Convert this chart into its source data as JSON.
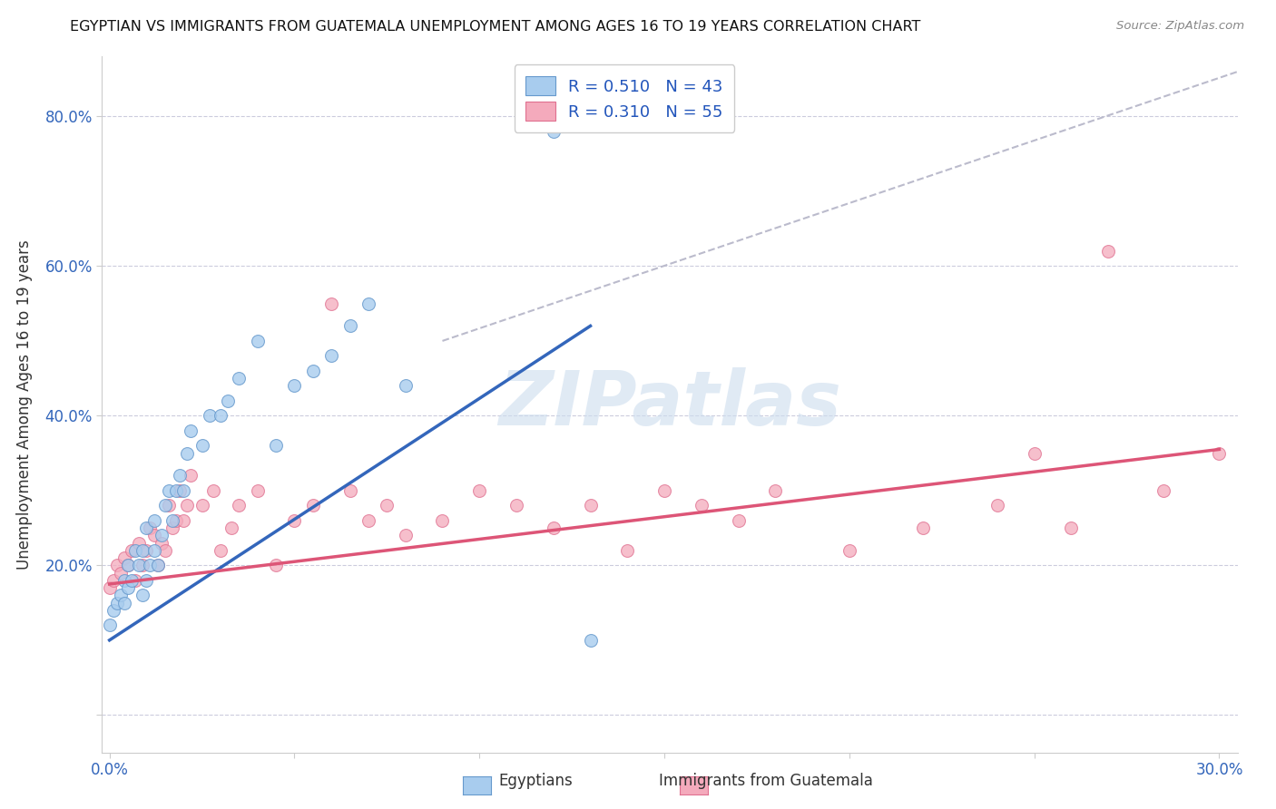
{
  "title": "EGYPTIAN VS IMMIGRANTS FROM GUATEMALA UNEMPLOYMENT AMONG AGES 16 TO 19 YEARS CORRELATION CHART",
  "source": "Source: ZipAtlas.com",
  "ylabel": "Unemployment Among Ages 16 to 19 years",
  "xlim": [
    -0.002,
    0.305
  ],
  "ylim": [
    -0.05,
    0.88
  ],
  "xticks": [
    0.0,
    0.05,
    0.1,
    0.15,
    0.2,
    0.25,
    0.3
  ],
  "xticklabels": [
    "0.0%",
    "",
    "",
    "",
    "",
    "",
    "30.0%"
  ],
  "yticks": [
    0.0,
    0.2,
    0.4,
    0.6,
    0.8
  ],
  "yticklabels": [
    "",
    "20.0%",
    "40.0%",
    "60.0%",
    "80.0%"
  ],
  "color_egyptian": "#A8CCEE",
  "color_guatemala": "#F4AABC",
  "color_edge_egyptian": "#6699CC",
  "color_edge_guatemala": "#E07090",
  "color_line_egyptian": "#3366BB",
  "color_line_guatemala": "#DD5577",
  "color_ref_line": "#BBBBCC",
  "background_color": "#FFFFFF",
  "grid_color": "#CCCCDD",
  "title_color": "#111111",
  "axis_label_color": "#333333",
  "tick_color": "#3366BB",
  "watermark_color": "#CCDDEE",
  "egyptian_x": [
    0.0,
    0.001,
    0.002,
    0.003,
    0.004,
    0.004,
    0.005,
    0.005,
    0.006,
    0.007,
    0.008,
    0.009,
    0.009,
    0.01,
    0.01,
    0.011,
    0.012,
    0.012,
    0.013,
    0.014,
    0.015,
    0.016,
    0.017,
    0.018,
    0.019,
    0.02,
    0.021,
    0.022,
    0.025,
    0.027,
    0.03,
    0.032,
    0.035,
    0.04,
    0.045,
    0.05,
    0.055,
    0.06,
    0.065,
    0.07,
    0.08,
    0.12,
    0.13
  ],
  "egyptian_y": [
    0.12,
    0.14,
    0.15,
    0.16,
    0.15,
    0.18,
    0.17,
    0.2,
    0.18,
    0.22,
    0.2,
    0.16,
    0.22,
    0.18,
    0.25,
    0.2,
    0.22,
    0.26,
    0.2,
    0.24,
    0.28,
    0.3,
    0.26,
    0.3,
    0.32,
    0.3,
    0.35,
    0.38,
    0.36,
    0.4,
    0.4,
    0.42,
    0.45,
    0.5,
    0.36,
    0.44,
    0.46,
    0.48,
    0.52,
    0.55,
    0.44,
    0.78,
    0.1
  ],
  "guatemala_x": [
    0.0,
    0.001,
    0.002,
    0.003,
    0.004,
    0.005,
    0.006,
    0.007,
    0.008,
    0.009,
    0.01,
    0.011,
    0.012,
    0.013,
    0.014,
    0.015,
    0.016,
    0.017,
    0.018,
    0.019,
    0.02,
    0.021,
    0.022,
    0.025,
    0.028,
    0.03,
    0.033,
    0.035,
    0.04,
    0.045,
    0.05,
    0.055,
    0.06,
    0.065,
    0.07,
    0.075,
    0.08,
    0.09,
    0.1,
    0.11,
    0.12,
    0.13,
    0.14,
    0.15,
    0.16,
    0.17,
    0.18,
    0.2,
    0.22,
    0.24,
    0.25,
    0.26,
    0.27,
    0.285,
    0.3
  ],
  "guatemala_y": [
    0.17,
    0.18,
    0.2,
    0.19,
    0.21,
    0.2,
    0.22,
    0.18,
    0.23,
    0.2,
    0.22,
    0.25,
    0.24,
    0.2,
    0.23,
    0.22,
    0.28,
    0.25,
    0.26,
    0.3,
    0.26,
    0.28,
    0.32,
    0.28,
    0.3,
    0.22,
    0.25,
    0.28,
    0.3,
    0.2,
    0.26,
    0.28,
    0.55,
    0.3,
    0.26,
    0.28,
    0.24,
    0.26,
    0.3,
    0.28,
    0.25,
    0.28,
    0.22,
    0.3,
    0.28,
    0.26,
    0.3,
    0.22,
    0.25,
    0.28,
    0.35,
    0.25,
    0.62,
    0.3,
    0.35
  ],
  "blue_line_x": [
    0.0,
    0.13
  ],
  "blue_line_y": [
    0.1,
    0.52
  ],
  "pink_line_x": [
    0.0,
    0.3
  ],
  "pink_line_y": [
    0.175,
    0.355
  ],
  "ref_line_x": [
    0.09,
    0.305
  ],
  "ref_line_y": [
    0.5,
    0.86
  ]
}
